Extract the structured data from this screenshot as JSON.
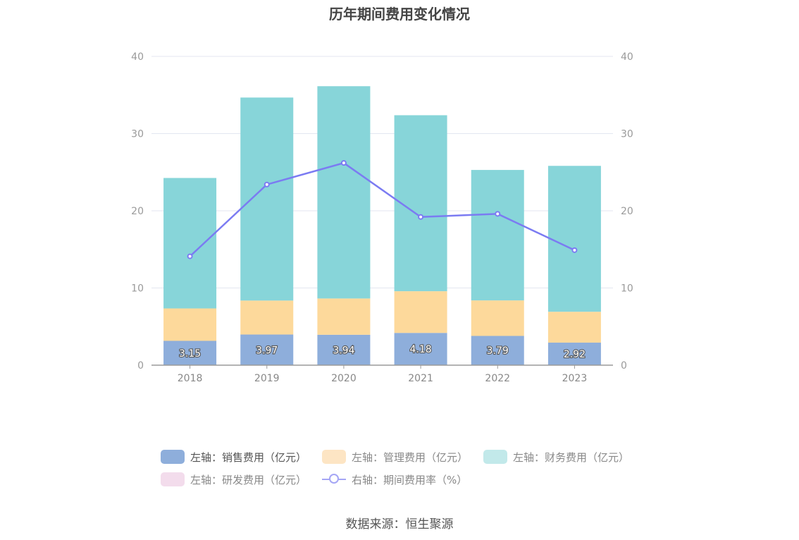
{
  "title": "历年期间费用变化情况",
  "source": "数据来源：恒生聚源",
  "legend": [
    {
      "label": "左轴：销售费用（亿元）",
      "color": "#8eaedb",
      "kind": "bar",
      "dim": false
    },
    {
      "label": "左轴：管理费用（亿元）",
      "color": "#fde5c4",
      "kind": "bar",
      "dim": true
    },
    {
      "label": "左轴：财务费用（亿元）",
      "color": "#c2e9ea",
      "kind": "bar",
      "dim": true
    },
    {
      "label": "左轴：研发费用（亿元）",
      "color": "#f3dcec",
      "kind": "bar",
      "dim": true
    },
    {
      "label": "右轴：期间费用率（%）",
      "color": "#a5a6f5",
      "kind": "line",
      "dim": true
    }
  ],
  "chart_data": {
    "type": "bar",
    "stacked": true,
    "title": "历年期间费用变化情况",
    "categories": [
      "2018",
      "2019",
      "2020",
      "2021",
      "2022",
      "2023"
    ],
    "ylim": [
      0,
      40
    ],
    "yticks": [
      0,
      10,
      20,
      30,
      40
    ],
    "y2lim": [
      0,
      40
    ],
    "y2ticks": [
      0,
      10,
      20,
      30,
      40
    ],
    "grid": true,
    "legend_position": "bottom",
    "series": [
      {
        "name": "左轴：销售费用（亿元）",
        "axis": "left",
        "type": "bar",
        "color": "#8eaedb",
        "values": [
          3.15,
          3.97,
          3.94,
          4.18,
          3.79,
          2.92
        ],
        "labels_shown": true
      },
      {
        "name": "左轴：管理费用（亿元）",
        "axis": "left",
        "type": "bar",
        "color": "#fdd99b",
        "values": [
          4.2,
          4.4,
          4.7,
          5.4,
          4.6,
          4.0
        ]
      },
      {
        "name": "左轴：财务费用（亿元）",
        "axis": "left",
        "type": "bar",
        "color": "#87d5d9",
        "values": [
          16.9,
          26.3,
          27.5,
          22.8,
          16.9,
          18.9
        ]
      },
      {
        "name": "左轴：研发费用（亿元）",
        "axis": "left",
        "type": "bar",
        "color": "#f3dcec",
        "values": [
          0,
          0,
          0,
          0,
          0,
          0
        ]
      },
      {
        "name": "右轴：期间费用率（%）",
        "axis": "right",
        "type": "line",
        "color": "#7b7bf2",
        "values": [
          14.1,
          23.4,
          26.2,
          19.2,
          19.6,
          14.9
        ]
      }
    ]
  }
}
